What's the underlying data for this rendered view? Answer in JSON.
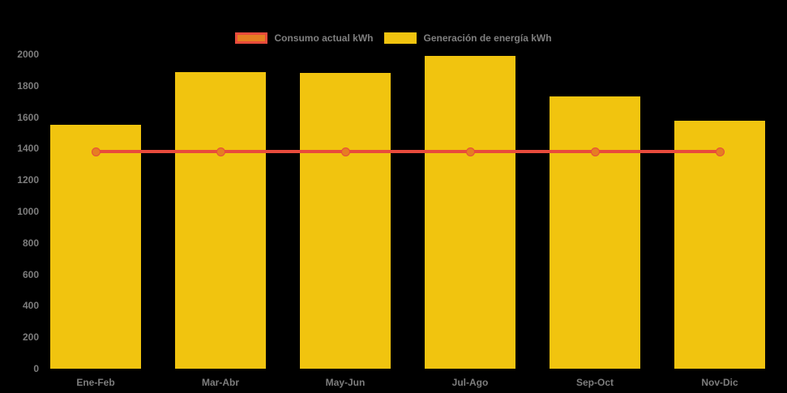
{
  "chart_data": {
    "type": "bar",
    "categories": [
      "Ene-Feb",
      "Mar-Abr",
      "May-Jun",
      "Jul-Ago",
      "Sep-Oct",
      "Nov-Dic"
    ],
    "series": [
      {
        "name": "Consumo actual kWh",
        "type": "line",
        "line_color": "#e84b3c",
        "point_color": "#e67e22",
        "values": [
          1380,
          1380,
          1380,
          1380,
          1380,
          1380
        ]
      },
      {
        "name": "Generación de energía kWh",
        "type": "bar",
        "color": "#f1c40f",
        "values": [
          1550,
          1885,
          1880,
          1990,
          1730,
          1575
        ]
      }
    ],
    "y_ticks": [
      0,
      200,
      400,
      600,
      800,
      1000,
      1200,
      1400,
      1600,
      1800,
      2000
    ],
    "ylim": [
      0,
      2000
    ],
    "xlabel": "",
    "ylabel": "",
    "title": "",
    "grid": false,
    "legend_position": "top-center",
    "background_color": "#000000",
    "tick_label_color": "#7d7d7d"
  }
}
